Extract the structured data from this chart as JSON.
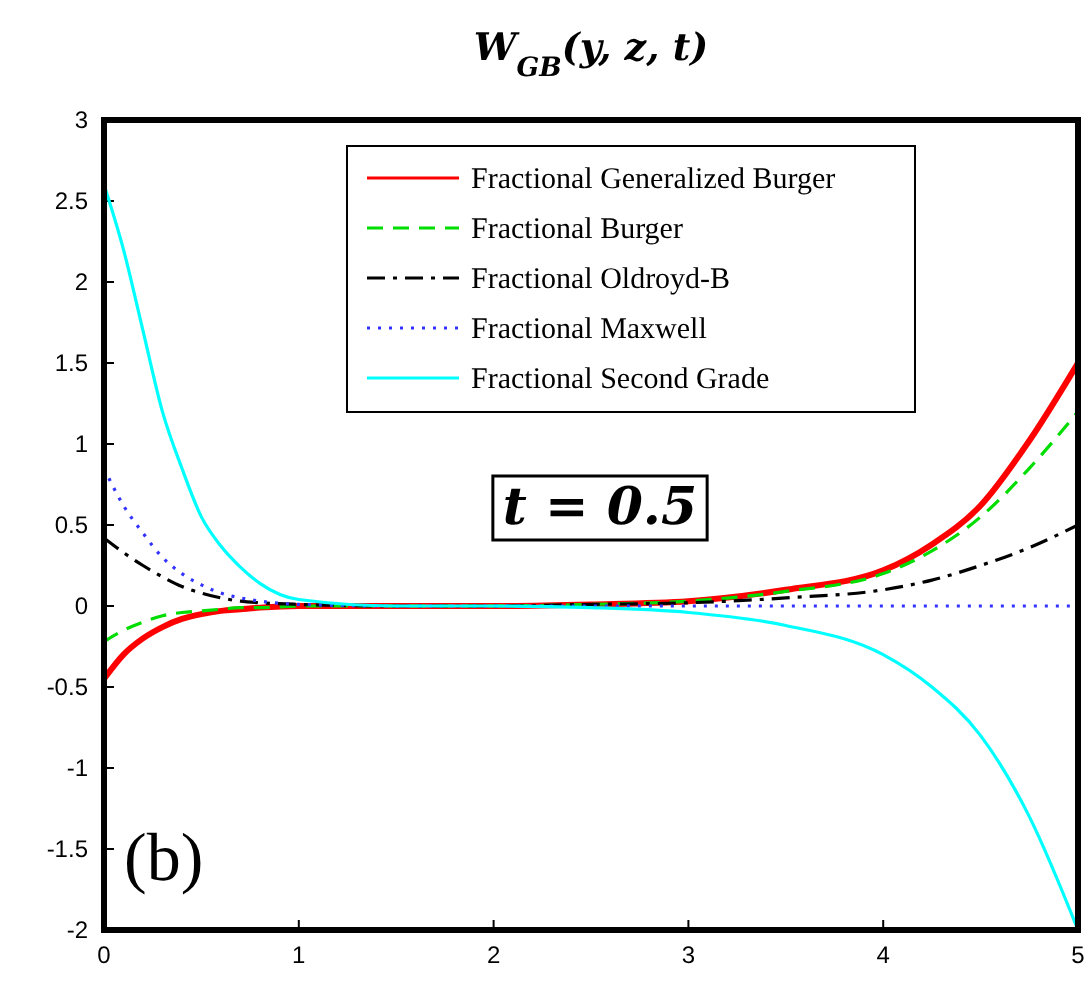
{
  "chart_data": {
    "type": "line",
    "title": "W$_{GB}$(y, z, t)",
    "xlim": [
      0,
      5
    ],
    "ylim": [
      -2,
      3
    ],
    "xticks": [
      0,
      1,
      2,
      3,
      4,
      5
    ],
    "yticks": [
      -2,
      -1.5,
      -1,
      -0.5,
      0,
      0.5,
      1,
      1.5,
      2,
      2.5,
      3
    ],
    "grid": false,
    "legend": "top",
    "annotations": [
      "t = 0.5",
      "(b)"
    ],
    "x": [
      0,
      0.1,
      0.2,
      0.3,
      0.4,
      0.5,
      0.6,
      0.7,
      0.8,
      1,
      1.5,
      2,
      2.5,
      3,
      3.5,
      4,
      4.25,
      4.5,
      4.75,
      5
    ],
    "series": [
      {
        "name": "Fractional Generalized Burger",
        "color": "#ff0000",
        "line_style": "solid",
        "values": [
          -0.45,
          -0.3,
          -0.2,
          -0.13,
          -0.08,
          -0.05,
          -0.03,
          -0.02,
          -0.01,
          0,
          0,
          0,
          0.01,
          0.03,
          0.1,
          0.22,
          0.38,
          0.62,
          1.02,
          1.5
        ]
      },
      {
        "name": "Fractional Burger",
        "color": "#00dd00",
        "line_style": "dashed",
        "values": [
          -0.22,
          -0.15,
          -0.1,
          -0.06,
          -0.04,
          -0.03,
          -0.02,
          -0.01,
          -0.01,
          0,
          0,
          0,
          0.01,
          0.03,
          0.09,
          0.2,
          0.34,
          0.55,
          0.85,
          1.2
        ]
      },
      {
        "name": "Fractional Oldroyd-B",
        "color": "#000000",
        "line_style": "dashdot",
        "values": [
          0.42,
          0.33,
          0.25,
          0.18,
          0.12,
          0.08,
          0.05,
          0.03,
          0.02,
          0.01,
          0,
          0,
          0.01,
          0.02,
          0.05,
          0.1,
          0.16,
          0.25,
          0.36,
          0.5
        ]
      },
      {
        "name": "Fractional Maxwell",
        "color": "#3333ff",
        "line_style": "dotted",
        "values": [
          0.85,
          0.62,
          0.45,
          0.3,
          0.2,
          0.13,
          0.08,
          0.05,
          0.03,
          0.01,
          0,
          0,
          0,
          0,
          0,
          0,
          0,
          0,
          0,
          0
        ]
      },
      {
        "name": "Fractional Second Grade",
        "color": "#00ffff",
        "line_style": "solid",
        "values": [
          2.6,
          2.2,
          1.7,
          1.2,
          0.85,
          0.55,
          0.37,
          0.24,
          0.14,
          0.04,
          0,
          0,
          -0.01,
          -0.04,
          -0.12,
          -0.3,
          -0.5,
          -0.8,
          -1.3,
          -2
        ]
      }
    ]
  }
}
